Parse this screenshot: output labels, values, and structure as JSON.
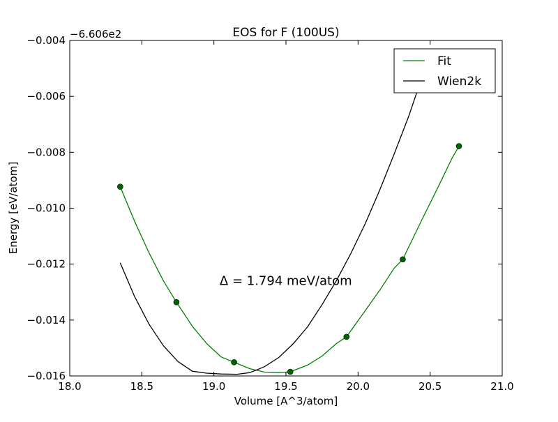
{
  "chart_data": {
    "type": "line",
    "title": "EOS for F (100US)",
    "xlabel": "Volume [A^3/atom]",
    "ylabel": "Energy [eV/atom]",
    "y_offset_label": "−6.606e2",
    "xlim": [
      18.0,
      21.0
    ],
    "ylim": [
      -0.016,
      -0.004
    ],
    "x_ticks": [
      18.0,
      18.5,
      19.0,
      19.5,
      20.0,
      20.5,
      21.0
    ],
    "x_tick_labels": [
      "18.0",
      "18.5",
      "19.0",
      "19.5",
      "20.0",
      "20.5",
      "21.0"
    ],
    "y_ticks": [
      -0.016,
      -0.014,
      -0.012,
      -0.01,
      -0.008,
      -0.006,
      -0.004
    ],
    "y_tick_labels": [
      "−0.016",
      "−0.014",
      "−0.012",
      "−0.010",
      "−0.008",
      "−0.006",
      "−0.004"
    ],
    "grid": false,
    "legend_position": "top-right",
    "series": [
      {
        "name": "Fit",
        "color": "#008000",
        "kind": "curve",
        "points": [
          [
            18.35,
            -0.00923
          ],
          [
            18.45,
            -0.01047
          ],
          [
            18.55,
            -0.0116
          ],
          [
            18.65,
            -0.0126
          ],
          [
            18.74,
            -0.01336
          ],
          [
            18.85,
            -0.01422
          ],
          [
            18.95,
            -0.01484
          ],
          [
            19.05,
            -0.01532
          ],
          [
            19.14,
            -0.01551
          ],
          [
            19.25,
            -0.01574
          ],
          [
            19.35,
            -0.01586
          ],
          [
            19.45,
            -0.01588
          ],
          [
            19.53,
            -0.01585
          ],
          [
            19.65,
            -0.01561
          ],
          [
            19.75,
            -0.01529
          ],
          [
            19.85,
            -0.01484
          ],
          [
            19.92,
            -0.0146
          ],
          [
            20.05,
            -0.01366
          ],
          [
            20.15,
            -0.01294
          ],
          [
            20.25,
            -0.01215
          ],
          [
            20.31,
            -0.01183
          ],
          [
            20.45,
            -0.01034
          ],
          [
            20.55,
            -0.0093
          ],
          [
            20.65,
            -0.00823
          ],
          [
            20.7,
            -0.00778
          ]
        ]
      },
      {
        "name": "Wien2k",
        "color": "#000000",
        "kind": "curve",
        "points": [
          [
            18.35,
            -0.01195
          ],
          [
            18.45,
            -0.01316
          ],
          [
            18.55,
            -0.01415
          ],
          [
            18.65,
            -0.01492
          ],
          [
            18.75,
            -0.01548
          ],
          [
            18.85,
            -0.01583
          ],
          [
            18.95,
            -0.0159
          ],
          [
            19.05,
            -0.01593
          ],
          [
            19.16,
            -0.01594
          ],
          [
            19.25,
            -0.01588
          ],
          [
            19.35,
            -0.01567
          ],
          [
            19.45,
            -0.01534
          ],
          [
            19.55,
            -0.01485
          ],
          [
            19.65,
            -0.01424
          ],
          [
            19.75,
            -0.01345
          ],
          [
            19.85,
            -0.01259
          ],
          [
            19.95,
            -0.01162
          ],
          [
            20.05,
            -0.01055
          ],
          [
            20.15,
            -0.00936
          ],
          [
            20.25,
            -0.00807
          ],
          [
            20.35,
            -0.00673
          ],
          [
            20.45,
            -0.00522
          ],
          [
            20.55,
            -0.00458
          ]
        ]
      }
    ],
    "markers": {
      "color": "#006400",
      "points": [
        [
          18.35,
          -0.00923
        ],
        [
          18.74,
          -0.01336
        ],
        [
          19.14,
          -0.01551
        ],
        [
          19.53,
          -0.01585
        ],
        [
          19.92,
          -0.0146
        ],
        [
          20.31,
          -0.01183
        ],
        [
          20.7,
          -0.00778
        ]
      ]
    },
    "annotations": [
      {
        "text": "Δ = 1.794 meV/atom",
        "x": 19.04,
        "y": -0.01275
      }
    ]
  }
}
